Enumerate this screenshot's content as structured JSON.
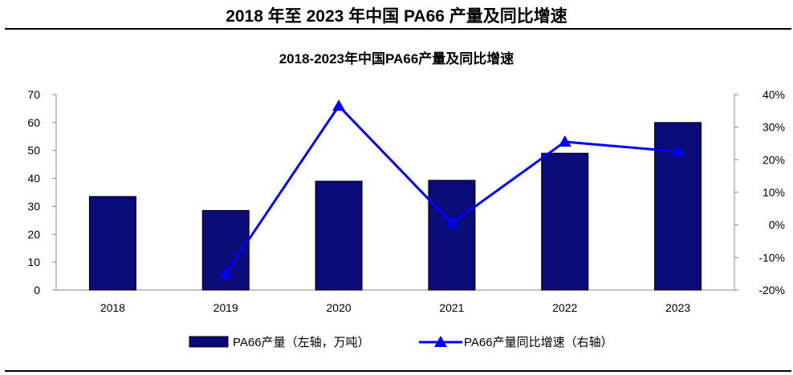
{
  "header": {
    "title": "2018 年至 2023 年中国 PA66 产量及同比增速"
  },
  "chart_data": {
    "type": "bar",
    "title": "2018-2023年中国PA66产量及同比增速",
    "categories": [
      "2018",
      "2019",
      "2020",
      "2021",
      "2022",
      "2023"
    ],
    "series": [
      {
        "name": "PA66产量（左轴，万吨）",
        "type": "bar",
        "axis": "left",
        "color": "#0a0a78",
        "values": [
          33.5,
          28.5,
          39,
          39.3,
          49,
          60
        ]
      },
      {
        "name": "PA66产量同比增速（右轴）",
        "type": "line",
        "axis": "right",
        "color": "#0000ff",
        "marker": "triangle",
        "values": [
          null,
          -15,
          36.5,
          0.5,
          25.5,
          22.5
        ]
      }
    ],
    "y_left": {
      "min": 0,
      "max": 70,
      "ticks": [
        "0",
        "10",
        "20",
        "30",
        "40",
        "50",
        "60",
        "70"
      ]
    },
    "y_right": {
      "min": -20,
      "max": 40,
      "ticks": [
        "-20%",
        "-10%",
        "0%",
        "10%",
        "20%",
        "30%",
        "40%"
      ]
    },
    "grid": false,
    "legend_position": "bottom"
  }
}
